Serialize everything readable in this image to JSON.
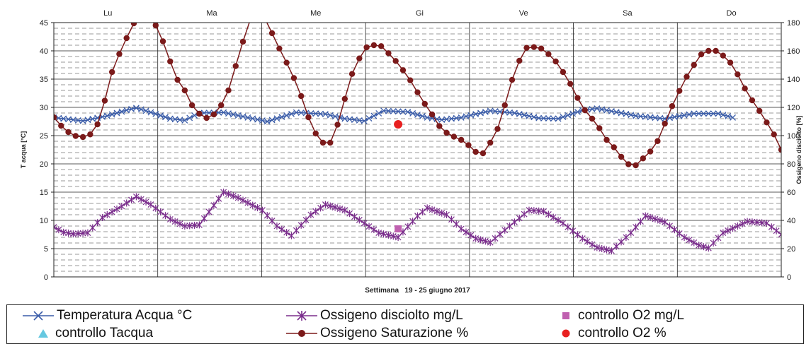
{
  "chart_data": {
    "type": "line",
    "xlabel": "Settimana   19 - 25 giugno 2017",
    "ylabel_left": "T acqua [°C]",
    "ylabel_right": "Ossigeno disciolto [%]",
    "ylim_left": [
      0,
      45
    ],
    "ylim_right": [
      0,
      180
    ],
    "yticks_left": [
      "0",
      "5",
      "10",
      "15",
      "20",
      "25",
      "30",
      "35",
      "40",
      "45"
    ],
    "yticks_right": [
      "0",
      "20",
      "40",
      "60",
      "80",
      "100",
      "120",
      "140",
      "160",
      "180"
    ],
    "days": [
      "Lu",
      "Ma",
      "Me",
      "Gi",
      "Ve",
      "Sa",
      "Do"
    ],
    "grid": true,
    "legend_position": "bottom",
    "series": [
      {
        "name": "Temperatura Acqua °C",
        "axis": "left",
        "color": "#3a5ca8",
        "marker": "x",
        "key_points": [
          [
            0.0,
            28.2
          ],
          [
            0.3,
            27.6
          ],
          [
            0.55,
            28.5
          ],
          [
            0.75,
            29.5
          ],
          [
            0.85,
            29.9
          ],
          [
            0.95,
            29.4
          ],
          [
            1.2,
            28.0
          ],
          [
            1.35,
            27.7
          ],
          [
            1.5,
            29.0
          ],
          [
            1.75,
            29.1
          ],
          [
            2.0,
            28.2
          ],
          [
            2.2,
            27.5
          ],
          [
            2.5,
            29.1
          ],
          [
            2.8,
            28.8
          ],
          [
            3.0,
            28.0
          ],
          [
            3.2,
            27.6
          ],
          [
            3.4,
            29.4
          ],
          [
            3.65,
            29.2
          ],
          [
            3.85,
            28.2
          ],
          [
            4.0,
            27.8
          ],
          [
            4.2,
            28.2
          ],
          [
            4.5,
            29.4
          ],
          [
            4.75,
            29.0
          ],
          [
            5.0,
            28.1
          ],
          [
            5.2,
            28.0
          ],
          [
            5.45,
            29.5
          ],
          [
            5.6,
            29.8
          ],
          [
            5.85,
            29.0
          ],
          [
            6.0,
            28.5
          ],
          [
            6.3,
            28.0
          ],
          [
            6.6,
            28.9
          ],
          [
            6.85,
            28.9
          ],
          [
            7.0,
            28.2
          ]
        ]
      },
      {
        "name": "Ossigeno disciolto mg/L",
        "axis": "left",
        "color": "#7a2d8c",
        "marker": "star",
        "key_points": [
          [
            0.0,
            8.8
          ],
          [
            0.1,
            7.9
          ],
          [
            0.2,
            7.6
          ],
          [
            0.35,
            7.8
          ],
          [
            0.5,
            10.5
          ],
          [
            0.7,
            12.5
          ],
          [
            0.85,
            14.2
          ],
          [
            1.0,
            12.8
          ],
          [
            1.2,
            10.2
          ],
          [
            1.35,
            9.0
          ],
          [
            1.5,
            9.2
          ],
          [
            1.6,
            11.5
          ],
          [
            1.75,
            15.0
          ],
          [
            1.9,
            14.0
          ],
          [
            2.15,
            11.8
          ],
          [
            2.3,
            9.0
          ],
          [
            2.45,
            7.3
          ],
          [
            2.65,
            11.0
          ],
          [
            2.8,
            12.8
          ],
          [
            3.0,
            11.8
          ],
          [
            3.2,
            9.5
          ],
          [
            3.35,
            7.8
          ],
          [
            3.55,
            7.0
          ],
          [
            3.75,
            10.8
          ],
          [
            3.85,
            12.2
          ],
          [
            4.05,
            11.0
          ],
          [
            4.2,
            8.5
          ],
          [
            4.35,
            6.8
          ],
          [
            4.5,
            6.1
          ],
          [
            4.7,
            9.0
          ],
          [
            4.9,
            11.8
          ],
          [
            5.05,
            11.6
          ],
          [
            5.25,
            9.5
          ],
          [
            5.45,
            6.8
          ],
          [
            5.6,
            5.2
          ],
          [
            5.75,
            4.6
          ],
          [
            5.95,
            7.8
          ],
          [
            6.1,
            10.8
          ],
          [
            6.3,
            9.7
          ],
          [
            6.5,
            7.0
          ],
          [
            6.65,
            5.6
          ],
          [
            6.75,
            5.1
          ],
          [
            6.9,
            7.8
          ],
          [
            7.15,
            9.8
          ],
          [
            7.35,
            9.5
          ],
          [
            7.5,
            7.5
          ],
          [
            7.7,
            6.9
          ]
        ]
      },
      {
        "name": "Ossigeno Saturazione %",
        "axis": "right",
        "color": "#7b1a1a",
        "marker": "circle",
        "key_points": [
          [
            0.0,
            113
          ],
          [
            0.1,
            105
          ],
          [
            0.2,
            100
          ],
          [
            0.3,
            99
          ],
          [
            0.42,
            102
          ],
          [
            0.5,
            118
          ],
          [
            0.6,
            145
          ],
          [
            0.7,
            162
          ],
          [
            0.85,
            183
          ],
          [
            0.95,
            186
          ],
          [
            1.05,
            178
          ],
          [
            1.15,
            163
          ],
          [
            1.25,
            142
          ],
          [
            1.35,
            132
          ],
          [
            1.45,
            118
          ],
          [
            1.55,
            113
          ],
          [
            1.6,
            112
          ],
          [
            1.7,
            118
          ],
          [
            1.8,
            132
          ],
          [
            1.9,
            155
          ],
          [
            2.0,
            178
          ],
          [
            2.05,
            186
          ],
          [
            2.12,
            190
          ],
          [
            2.2,
            180
          ],
          [
            2.3,
            165
          ],
          [
            2.45,
            145
          ],
          [
            2.55,
            128
          ],
          [
            2.65,
            108
          ],
          [
            2.75,
            95
          ],
          [
            2.85,
            95
          ],
          [
            2.95,
            112
          ],
          [
            3.05,
            140
          ],
          [
            3.2,
            162
          ],
          [
            3.35,
            165
          ],
          [
            3.5,
            155
          ],
          [
            3.65,
            142
          ],
          [
            3.8,
            125
          ],
          [
            3.9,
            115
          ],
          [
            4.0,
            104
          ],
          [
            4.1,
            100
          ],
          [
            4.2,
            97
          ],
          [
            4.3,
            92
          ],
          [
            4.4,
            85
          ],
          [
            4.5,
            95
          ],
          [
            4.6,
            108
          ],
          [
            4.7,
            135
          ],
          [
            4.85,
            162
          ],
          [
            5.0,
            163
          ],
          [
            5.15,
            155
          ],
          [
            5.3,
            140
          ],
          [
            5.45,
            120
          ],
          [
            5.6,
            108
          ],
          [
            5.7,
            97
          ],
          [
            5.8,
            90
          ],
          [
            5.9,
            80
          ],
          [
            6.0,
            79
          ],
          [
            6.2,
            92
          ],
          [
            6.4,
            125
          ],
          [
            6.55,
            145
          ],
          [
            6.7,
            160
          ],
          [
            6.85,
            160
          ],
          [
            7.0,
            150
          ],
          [
            7.15,
            130
          ],
          [
            7.3,
            115
          ],
          [
            7.45,
            98
          ],
          [
            7.55,
            82
          ],
          [
            7.65,
            76
          ],
          [
            7.75,
            72
          ],
          [
            7.8,
            70
          ],
          [
            7.9,
            78
          ],
          [
            8.0,
            110
          ],
          [
            8.1,
            128
          ],
          [
            8.2,
            140
          ],
          [
            8.35,
            147
          ],
          [
            8.45,
            145
          ],
          [
            8.55,
            130
          ],
          [
            8.65,
            118
          ],
          [
            8.75,
            103
          ],
          [
            8.85,
            94
          ],
          [
            8.95,
            90
          ]
        ]
      },
      {
        "name": "controllo O2 mg/L",
        "axis": "left",
        "color": "#c060b0",
        "marker": "square",
        "points": [
          [
            3.55,
            8.5
          ]
        ]
      },
      {
        "name": "controllo Tacqua",
        "axis": "left",
        "color": "#66c8e0",
        "marker": "triangle",
        "points": []
      },
      {
        "name": "controllo O2 %",
        "axis": "right",
        "color": "#e82020",
        "marker": "circle-solid",
        "points": [
          [
            3.55,
            108
          ]
        ]
      }
    ]
  },
  "legend": {
    "items": [
      {
        "label": "Temperatura Acqua °C",
        "marker": "x",
        "color": "#3a5ca8"
      },
      {
        "label": "Ossigeno disciolto mg/L",
        "marker": "star",
        "color": "#7a2d8c"
      },
      {
        "label": "controllo O2 mg/L",
        "marker": "square",
        "color": "#c060b0"
      },
      {
        "label": "controllo Tacqua",
        "marker": "triangle",
        "color": "#66c8e0"
      },
      {
        "label": "Ossigeno Saturazione %",
        "marker": "circle",
        "color": "#7b1a1a"
      },
      {
        "label": "controllo O2 %",
        "marker": "circle-solid",
        "color": "#e82020"
      }
    ]
  }
}
